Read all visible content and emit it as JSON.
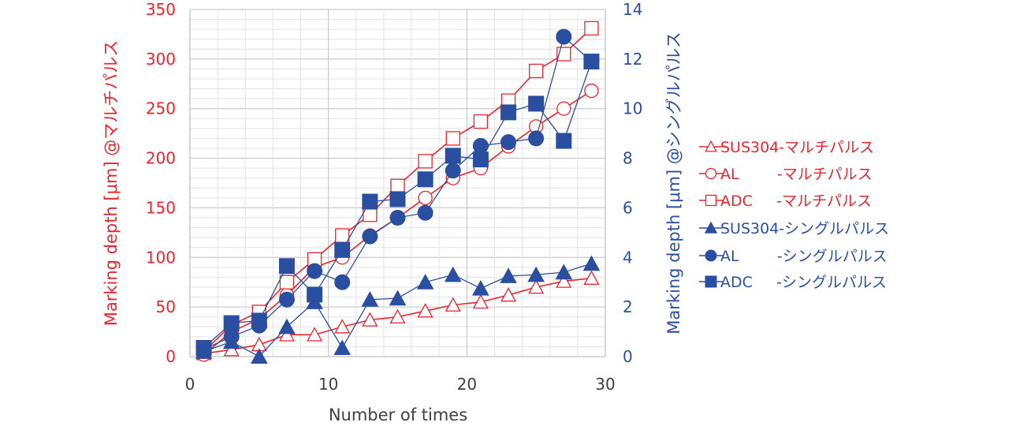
{
  "chart_data": {
    "type": "line",
    "xlabel": "Number of times",
    "ylabel_left": "Marking depth [μm] @マルチパルス",
    "ylabel_right": "Marking depth [μm] @シングルパルス",
    "xlim": [
      0,
      30
    ],
    "ylim_left": [
      0,
      350
    ],
    "ylim_right": [
      0,
      14
    ],
    "x_ticks": [
      "0",
      "10",
      "20",
      "30"
    ],
    "y_ticks_left": [
      "0",
      "50",
      "100",
      "150",
      "200",
      "250",
      "300",
      "350"
    ],
    "y_ticks_right": [
      "0",
      "2",
      "4",
      "6",
      "8",
      "10",
      "12",
      "14"
    ],
    "grid": true,
    "legend_position": "right",
    "colors": {
      "multi": "#e8242c",
      "single": "#2b4fa0",
      "grid": "#d9d9d9"
    },
    "series": [
      {
        "name": "SUS304-マルチパルス",
        "axis": "left",
        "marker": "triangle",
        "filled": false,
        "color": "#e8242c",
        "x": [
          1,
          3,
          5,
          7,
          9,
          11,
          13,
          15,
          17,
          19,
          21,
          23,
          25,
          27,
          29
        ],
        "y": [
          3,
          7,
          12,
          22,
          22,
          30,
          37,
          40,
          46,
          52,
          55,
          62,
          70,
          76,
          79
        ]
      },
      {
        "name": "AL        -マルチパルス",
        "axis": "left",
        "marker": "circle",
        "filled": false,
        "color": "#e8242c",
        "x": [
          1,
          3,
          5,
          7,
          9,
          11,
          13,
          15,
          17,
          19,
          21,
          23,
          25,
          27,
          29
        ],
        "y": [
          2,
          25,
          38,
          62,
          90,
          100,
          122,
          140,
          160,
          180,
          190,
          212,
          232,
          250,
          268
        ]
      },
      {
        "name": "ADC     -マルチパルス",
        "axis": "left",
        "marker": "square",
        "filled": false,
        "color": "#e8242c",
        "x": [
          1,
          3,
          5,
          7,
          9,
          11,
          13,
          15,
          17,
          19,
          21,
          23,
          25,
          27,
          29
        ],
        "y": [
          5,
          32,
          45,
          75,
          98,
          122,
          143,
          172,
          197,
          220,
          237,
          258,
          288,
          305,
          331
        ]
      },
      {
        "name": "SUS304-シングルパルス",
        "axis": "right",
        "marker": "triangle",
        "filled": true,
        "color": "#2b4fa0",
        "x": [
          1,
          3,
          5,
          7,
          9,
          11,
          13,
          15,
          17,
          19,
          21,
          23,
          25,
          27,
          29
        ],
        "y": [
          0.2,
          0.6,
          0.0,
          1.2,
          2.2,
          0.35,
          2.3,
          2.35,
          3.0,
          3.3,
          2.75,
          3.25,
          3.3,
          3.4,
          3.75
        ]
      },
      {
        "name": "AL        -シングルパルス",
        "axis": "right",
        "marker": "circle",
        "filled": true,
        "color": "#2b4fa0",
        "x": [
          1,
          3,
          5,
          7,
          9,
          11,
          13,
          15,
          17,
          19,
          21,
          23,
          25,
          27,
          29
        ],
        "y": [
          0.3,
          0.8,
          1.25,
          2.3,
          3.45,
          3.0,
          4.85,
          5.6,
          5.8,
          7.5,
          8.5,
          8.65,
          8.8,
          12.9,
          11.9
        ]
      },
      {
        "name": "ADC     -シングルパルス",
        "axis": "right",
        "marker": "square",
        "filled": true,
        "color": "#2b4fa0",
        "x": [
          1,
          3,
          5,
          7,
          9,
          11,
          13,
          15,
          17,
          19,
          21,
          23,
          25,
          27,
          29
        ],
        "y": [
          0.35,
          1.35,
          1.45,
          3.65,
          2.5,
          4.3,
          6.25,
          6.35,
          7.15,
          8.1,
          7.95,
          9.85,
          10.2,
          8.7,
          11.9
        ]
      }
    ]
  }
}
